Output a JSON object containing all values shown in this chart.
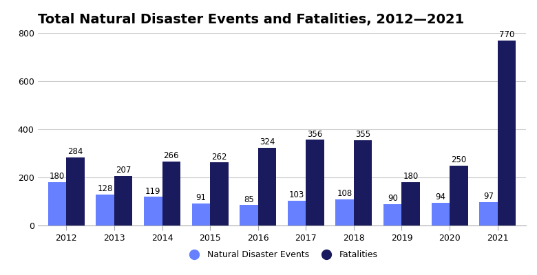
{
  "title": "Total Natural Disaster Events and Fatalities, 2012—2021",
  "years": [
    2012,
    2013,
    2014,
    2015,
    2016,
    2017,
    2018,
    2019,
    2020,
    2021
  ],
  "events": [
    180,
    128,
    119,
    91,
    85,
    103,
    108,
    90,
    94,
    97
  ],
  "fatalities": [
    284,
    207,
    266,
    262,
    324,
    356,
    355,
    180,
    250,
    770
  ],
  "events_color": "#6680ff",
  "fatalities_color": "#1a1a5e",
  "ylim": [
    0,
    800
  ],
  "yticks": [
    0,
    200,
    400,
    600,
    800
  ],
  "bar_width": 0.38,
  "legend_labels": [
    "Natural Disaster Events",
    "Fatalities"
  ],
  "title_fontsize": 14,
  "label_fontsize": 8.5,
  "tick_fontsize": 9,
  "background_color": "#ffffff",
  "grid_color": "#cccccc"
}
